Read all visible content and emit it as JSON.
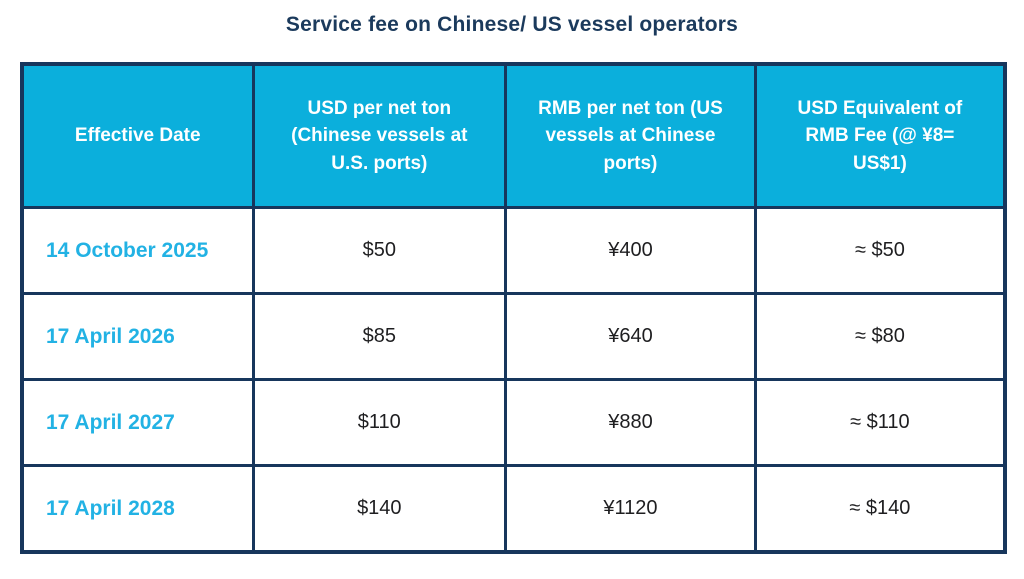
{
  "title": "Service fee on Chinese/ US vessel operators",
  "colors": {
    "header_bg": "#0bafdc",
    "border": "#17365c",
    "title_text": "#1b3a5c",
    "date_text": "#22b2e4",
    "cell_text": "#1e1e20"
  },
  "table": {
    "headers": [
      "Effective Date",
      "USD per net ton (Chinese vessels at U.S. ports)",
      "RMB per net ton (US vessels at Chinese ports)",
      "USD Equivalent of RMB Fee (@ ¥8= US$1)"
    ],
    "rows": [
      {
        "date": "14 October 2025",
        "usd": "$50",
        "rmb": "¥400",
        "usd_equiv": "≈ $50"
      },
      {
        "date": "17 April 2026",
        "usd": "$85",
        "rmb": "¥640",
        "usd_equiv": "≈ $80"
      },
      {
        "date": "17 April 2027",
        "usd": "$110",
        "rmb": "¥880",
        "usd_equiv": "≈ $110"
      },
      {
        "date": "17 April 2028",
        "usd": "$140",
        "rmb": "¥1120",
        "usd_equiv": "≈ $140"
      }
    ]
  },
  "chart_data": {
    "type": "table",
    "title": "Service fee on Chinese/ US vessel operators",
    "columns": [
      "Effective Date",
      "USD per net ton (Chinese vessels at U.S. ports)",
      "RMB per net ton (US vessels at Chinese ports)",
      "USD Equivalent of RMB Fee (@ ¥8= US$1)"
    ],
    "rows": [
      [
        "14 October 2025",
        "$50",
        "¥400",
        "≈ $50"
      ],
      [
        "17 April 2026",
        "$85",
        "¥640",
        "≈ $80"
      ],
      [
        "17 April 2027",
        "$110",
        "¥880",
        "≈ $110"
      ],
      [
        "17 April 2028",
        "$140",
        "¥1120",
        "≈ $140"
      ]
    ],
    "notes": {
      "usd_values_numeric": [
        50,
        85,
        110,
        140
      ],
      "rmb_values_numeric": [
        400,
        640,
        880,
        1120
      ],
      "usd_equiv_numeric": [
        50,
        80,
        110,
        140
      ],
      "exchange_rate_assumption": "¥8 = US$1"
    }
  }
}
